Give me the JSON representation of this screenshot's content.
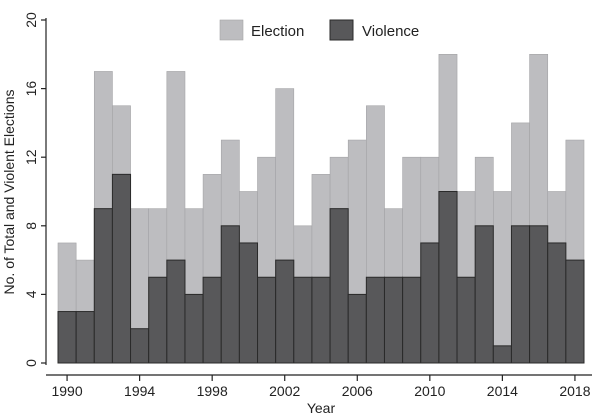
{
  "chart_data": {
    "type": "bar",
    "xlabel": "Year",
    "ylabel": "No. of Total and Violent Elections",
    "ylim": [
      0,
      20
    ],
    "yticks": [
      0,
      4,
      8,
      12,
      16,
      20
    ],
    "xlim": [
      1989.5,
      2018.5
    ],
    "xticks": [
      1990,
      1994,
      1998,
      2002,
      2006,
      2010,
      2014,
      2018
    ],
    "grid": false,
    "legend_position": "top-center",
    "overlay": true,
    "x": [
      1990,
      1991,
      1992,
      1993,
      1994,
      1995,
      1996,
      1997,
      1998,
      1999,
      2000,
      2001,
      2002,
      2003,
      2004,
      2005,
      2006,
      2007,
      2008,
      2009,
      2010,
      2011,
      2012,
      2013,
      2014,
      2015,
      2016,
      2017,
      2018
    ],
    "series": [
      {
        "name": "Election",
        "color": "#bdbdc0",
        "values": [
          7,
          6,
          17,
          15,
          9,
          9,
          17,
          9,
          11,
          13,
          10,
          12,
          16,
          8,
          11,
          12,
          13,
          15,
          9,
          12,
          12,
          18,
          10,
          12,
          10,
          14,
          18,
          10,
          13
        ]
      },
      {
        "name": "Violence",
        "color": "#58585a",
        "values": [
          3,
          3,
          9,
          11,
          2,
          5,
          6,
          4,
          5,
          8,
          7,
          5,
          6,
          5,
          5,
          9,
          4,
          5,
          5,
          5,
          7,
          10,
          5,
          8,
          1,
          8,
          8,
          7,
          6
        ]
      }
    ]
  }
}
